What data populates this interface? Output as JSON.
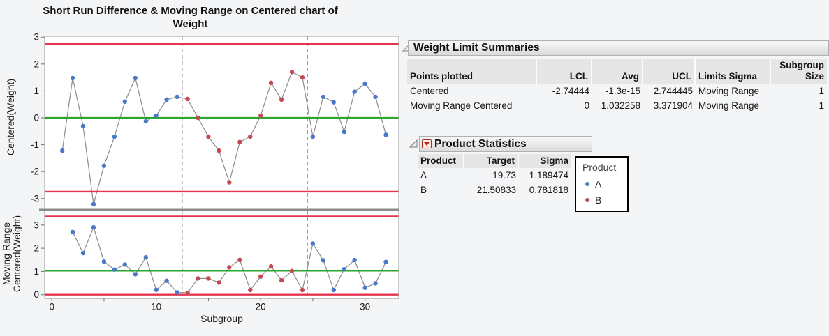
{
  "title_line1": "Short Run Difference & Moving Range on Centered chart of",
  "title_line2": "Weight",
  "colors": {
    "limit_line": "#e4344e",
    "center_line": "#2ba62b",
    "series_line": "#8c8c8c",
    "phase_line": "#9c9c9c",
    "frame": "#a8a8a8",
    "axis_text": "#1c1c1c",
    "divider": "#8a8a8a",
    "product_a": "#4a78c9",
    "product_b": "#c44a52"
  },
  "xaxis": {
    "label": "Subgroup",
    "ticks": [
      0,
      10,
      20,
      30
    ],
    "minor_ticks": [
      5,
      15,
      25
    ],
    "xlim": [
      -0.5,
      33.2
    ],
    "phase_lines": [
      12.5,
      24.5
    ]
  },
  "chart_data": [
    {
      "type": "line",
      "name": "centered",
      "ylabel_lines": [
        "Centered(Weight)"
      ],
      "yticks": [
        3,
        2,
        1,
        0,
        -1,
        -2,
        -3
      ],
      "ylim": [
        -3.5,
        3.05
      ],
      "center": 0,
      "ucl": 2.744445,
      "lcl": -2.74444,
      "x": [
        1,
        2,
        3,
        4,
        5,
        6,
        7,
        8,
        9,
        10,
        11,
        12,
        13,
        14,
        15,
        16,
        17,
        18,
        19,
        20,
        21,
        22,
        23,
        24,
        25,
        26,
        27,
        28,
        29,
        30,
        31,
        32
      ],
      "values": [
        -1.22,
        1.48,
        -0.31,
        -3.21,
        -1.78,
        -0.7,
        0.6,
        1.48,
        -0.13,
        0.08,
        0.68,
        0.78,
        0.7,
        0.0,
        -0.7,
        -1.22,
        -2.4,
        -0.9,
        -0.7,
        0.08,
        1.3,
        0.68,
        1.7,
        1.5,
        -0.7,
        0.78,
        0.58,
        -0.52,
        0.97,
        1.27,
        0.78,
        -0.63
      ],
      "product": [
        "A",
        "A",
        "A",
        "A",
        "A",
        "A",
        "A",
        "A",
        "A",
        "A",
        "A",
        "A",
        "B",
        "B",
        "B",
        "B",
        "B",
        "B",
        "B",
        "B",
        "B",
        "B",
        "B",
        "B",
        "A",
        "A",
        "A",
        "A",
        "A",
        "A",
        "A",
        "A"
      ]
    },
    {
      "type": "line",
      "name": "moving-range",
      "ylabel_lines": [
        "Moving Range",
        "Centered(Weight)"
      ],
      "yticks": [
        0,
        1,
        2,
        3
      ],
      "ylim": [
        -0.15,
        3.62
      ],
      "center": 1.032258,
      "ucl": 3.371904,
      "lcl": 0,
      "x": [
        2,
        3,
        4,
        5,
        6,
        7,
        8,
        9,
        10,
        11,
        12,
        13,
        14,
        15,
        16,
        17,
        18,
        19,
        20,
        21,
        22,
        23,
        24,
        25,
        26,
        27,
        28,
        29,
        30,
        31,
        32
      ],
      "values": [
        2.7,
        1.79,
        2.9,
        1.43,
        1.08,
        1.3,
        0.88,
        1.61,
        0.21,
        0.6,
        0.1,
        0.08,
        0.7,
        0.7,
        0.52,
        1.18,
        1.5,
        0.2,
        0.78,
        1.22,
        0.62,
        1.02,
        0.2,
        2.2,
        1.48,
        0.2,
        1.1,
        1.49,
        0.3,
        0.49,
        1.41
      ],
      "product": [
        "A",
        "A",
        "A",
        "A",
        "A",
        "A",
        "A",
        "A",
        "A",
        "A",
        "A",
        "B",
        "B",
        "B",
        "B",
        "B",
        "B",
        "B",
        "B",
        "B",
        "B",
        "B",
        "B",
        "A",
        "A",
        "A",
        "A",
        "A",
        "A",
        "A",
        "A"
      ]
    }
  ],
  "limit_summaries": {
    "title": "Weight Limit Summaries",
    "columns": [
      "Points plotted",
      "LCL",
      "Avg",
      "UCL",
      "Limits Sigma",
      "Subgroup Size"
    ],
    "rows": [
      {
        "points_plotted": "Centered",
        "lcl": "-2.74444",
        "avg": "-1.3e-15",
        "ucl": "2.744445",
        "limits_sigma": "Moving Range",
        "subgroup_size": "1"
      },
      {
        "points_plotted": "Moving Range Centered",
        "lcl": "0",
        "avg": "1.032258",
        "ucl": "3.371904",
        "limits_sigma": "Moving Range",
        "subgroup_size": "1"
      }
    ]
  },
  "product_statistics": {
    "title": "Product Statistics",
    "columns": [
      "Product",
      "Target",
      "Sigma"
    ],
    "rows": [
      {
        "product": "A",
        "target": "19.73",
        "sigma": "1.189474"
      },
      {
        "product": "B",
        "target": "21.50833",
        "sigma": "0.781818"
      }
    ]
  },
  "legend": {
    "title": "Product",
    "items": [
      {
        "label": "A",
        "color": "#4a78c9"
      },
      {
        "label": "B",
        "color": "#c44a52"
      }
    ]
  }
}
